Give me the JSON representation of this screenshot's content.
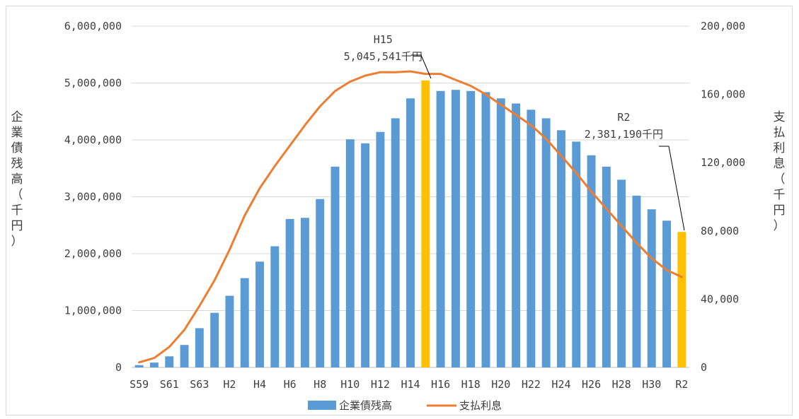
{
  "chart_data": {
    "type": "bar",
    "categories": [
      "S59",
      "S60",
      "S61",
      "S62",
      "S63",
      "H1",
      "H2",
      "H3",
      "H4",
      "H5",
      "H6",
      "H7",
      "H8",
      "H9",
      "H10",
      "H11",
      "H12",
      "H13",
      "H14",
      "H15",
      "H16",
      "H17",
      "H18",
      "H19",
      "H20",
      "H21",
      "H22",
      "H23",
      "H24",
      "H25",
      "H26",
      "H27",
      "H28",
      "H29",
      "H30",
      "R1",
      "R2"
    ],
    "x_tick_labels": [
      "S59",
      "S61",
      "S63",
      "H2",
      "H4",
      "H6",
      "H8",
      "H10",
      "H12",
      "H14",
      "H16",
      "H18",
      "H20",
      "H22",
      "H24",
      "H26",
      "H28",
      "H30",
      "R2"
    ],
    "series": [
      {
        "name": "企業債残高",
        "kind": "bar",
        "axis": "left",
        "color": "#5b9bd5",
        "highlight_color": "#ffc000",
        "highlight_categories": [
          "H15",
          "R2"
        ],
        "values": [
          40000,
          85000,
          195000,
          395000,
          690000,
          960000,
          1260000,
          1570000,
          1860000,
          2130000,
          2610000,
          2630000,
          2960000,
          3530000,
          4010000,
          3940000,
          4140000,
          4380000,
          4730000,
          5045541,
          4860000,
          4880000,
          4860000,
          4840000,
          4730000,
          4640000,
          4530000,
          4380000,
          4170000,
          3970000,
          3730000,
          3530000,
          3300000,
          3020000,
          2780000,
          2580000,
          2381190
        ]
      },
      {
        "name": "支払利息",
        "kind": "line",
        "axis": "right",
        "color": "#ed7d31",
        "values": [
          3000,
          5500,
          12000,
          22000,
          36000,
          51000,
          69000,
          89000,
          105000,
          118000,
          130000,
          142000,
          153000,
          162000,
          167500,
          171000,
          173000,
          173000,
          173500,
          172000,
          172000,
          168500,
          165000,
          160000,
          154000,
          148000,
          142000,
          134000,
          124000,
          114000,
          103000,
          93000,
          83000,
          73000,
          64000,
          57000,
          53000
        ]
      }
    ],
    "y_left": {
      "label": "企業債残高（千円）",
      "ylim": [
        0,
        6000000
      ],
      "ticks": [
        "0",
        "1,000,000",
        "2,000,000",
        "3,000,000",
        "4,000,000",
        "5,000,000",
        "6,000,000"
      ]
    },
    "y_right": {
      "label": "支払利息（千円）",
      "ylim": [
        0,
        200000
      ],
      "ticks": [
        "0",
        "40,000",
        "80,000",
        "120,000",
        "160,000",
        "200,000"
      ]
    },
    "annotations": [
      {
        "category": "H15",
        "line1": "H15",
        "line2": "5,045,541千円"
      },
      {
        "category": "R2",
        "line1": "R2",
        "line2": "2,381,190千円"
      }
    ],
    "grid": true,
    "legend": "bottom"
  }
}
